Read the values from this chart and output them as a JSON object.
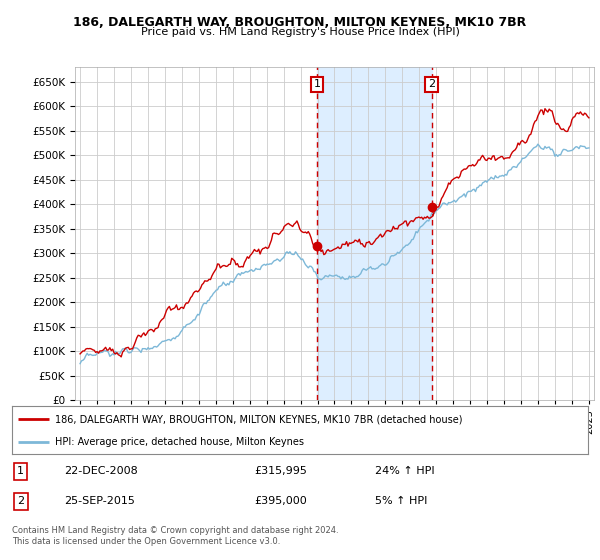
{
  "title1": "186, DALEGARTH WAY, BROUGHTON, MILTON KEYNES, MK10 7BR",
  "title2": "Price paid vs. HM Land Registry's House Price Index (HPI)",
  "legend_line1": "186, DALEGARTH WAY, BROUGHTON, MILTON KEYNES, MK10 7BR (detached house)",
  "legend_line2": "HPI: Average price, detached house, Milton Keynes",
  "annotation1_label": "1",
  "annotation1_date": "22-DEC-2008",
  "annotation1_price": "£315,995",
  "annotation1_hpi": "24% ↑ HPI",
  "annotation2_label": "2",
  "annotation2_date": "25-SEP-2015",
  "annotation2_price": "£395,000",
  "annotation2_hpi": "5% ↑ HPI",
  "footer": "Contains HM Land Registry data © Crown copyright and database right 2024.\nThis data is licensed under the Open Government Licence v3.0.",
  "hpi_color": "#7db8d8",
  "price_color": "#cc0000",
  "vline_color": "#cc0000",
  "highlight_color": "#ddeeff",
  "ylim": [
    0,
    680000
  ],
  "yticks": [
    0,
    50000,
    100000,
    150000,
    200000,
    250000,
    300000,
    350000,
    400000,
    450000,
    500000,
    550000,
    600000,
    650000
  ],
  "start_year": 1995,
  "end_year": 2025,
  "sale1_year": 2008.97,
  "sale1_price": 315995,
  "sale2_year": 2015.73,
  "sale2_price": 395000
}
